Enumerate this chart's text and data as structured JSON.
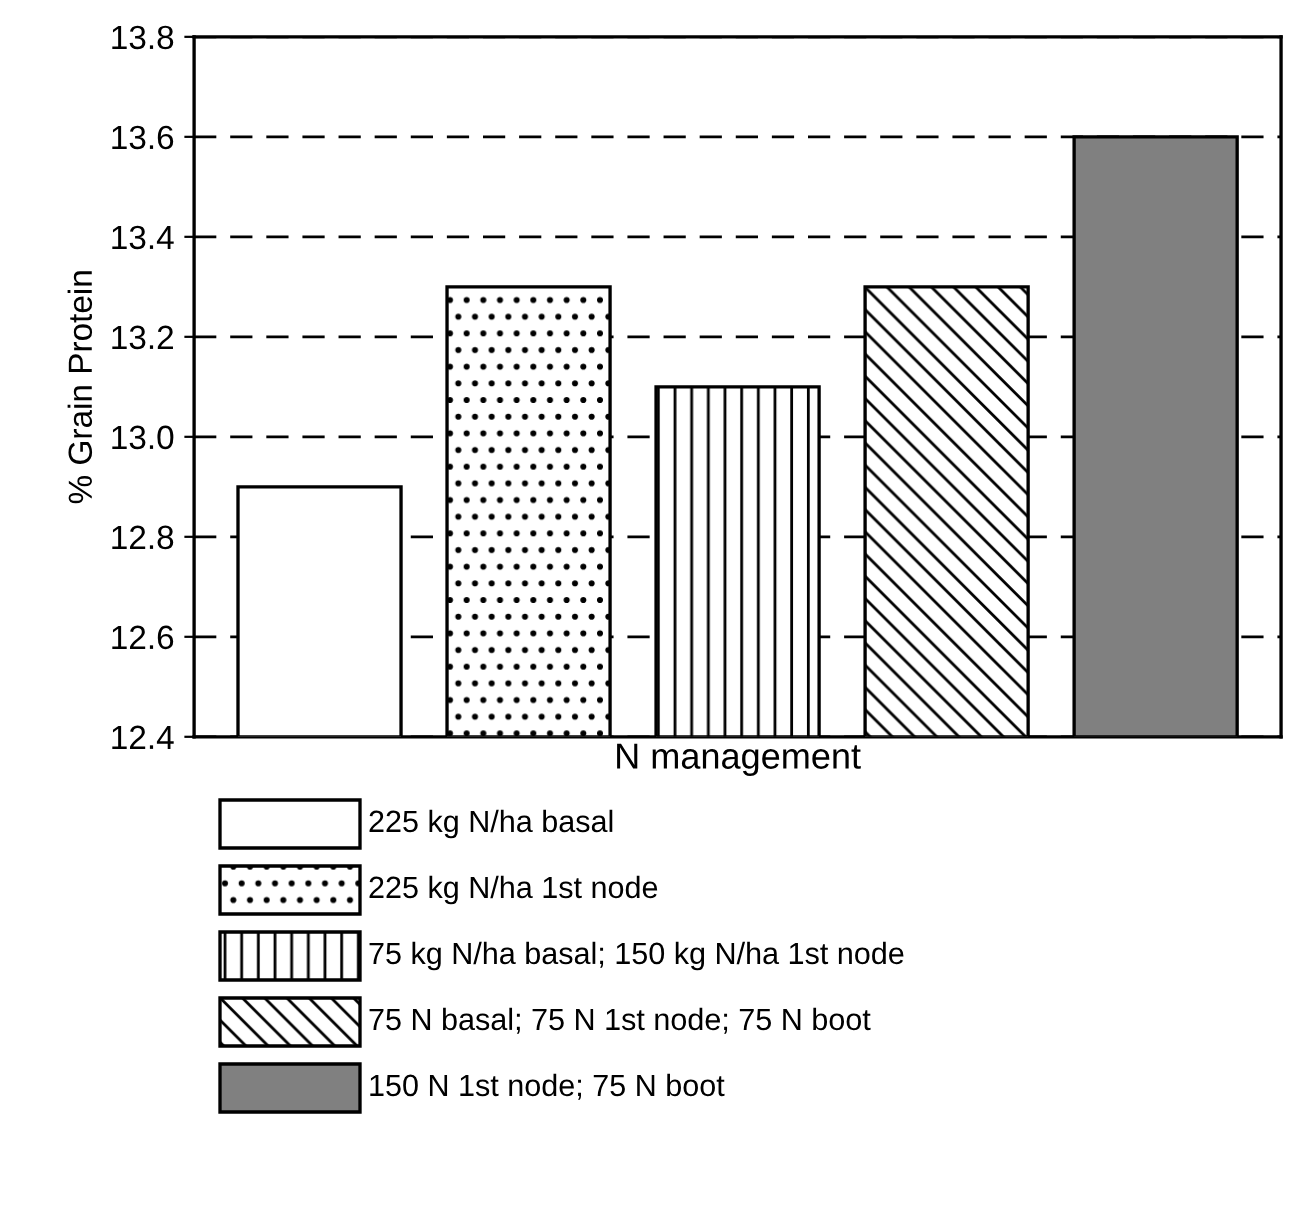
{
  "chart_data": {
    "type": "bar",
    "xlabel": "N management",
    "ylabel": "% Grain Protein",
    "categories": [
      null
    ],
    "series": [
      {
        "name": "225 kg N/ha basal",
        "color": "#ffffff",
        "values": [
          12.9
        ]
      },
      {
        "name": "225 kg N/ha 1st node",
        "color": "#ffffff",
        "values": [
          13.3
        ]
      },
      {
        "name": "75 kg N/ha basal; 150 kg N/ha 1st node",
        "color": "#ffffff",
        "values": [
          13.1
        ]
      },
      {
        "name": "75 N basal; 75 N 1st node; 75 N boot",
        "color": "#ffffff",
        "values": [
          13.3
        ]
      },
      {
        "name": "150 N 1st node; 75 N boot",
        "color": "#808080",
        "values": [
          13.6
        ]
      }
    ],
    "ylim": [
      12.4,
      13.8
    ],
    "yticks": [
      12.4,
      12.6,
      12.8,
      {
        "value": 13.0,
        "label": "13.0"
      },
      13.2,
      13.4,
      13.6,
      13.8
    ],
    "grid": "y",
    "legend": "bottom"
  }
}
